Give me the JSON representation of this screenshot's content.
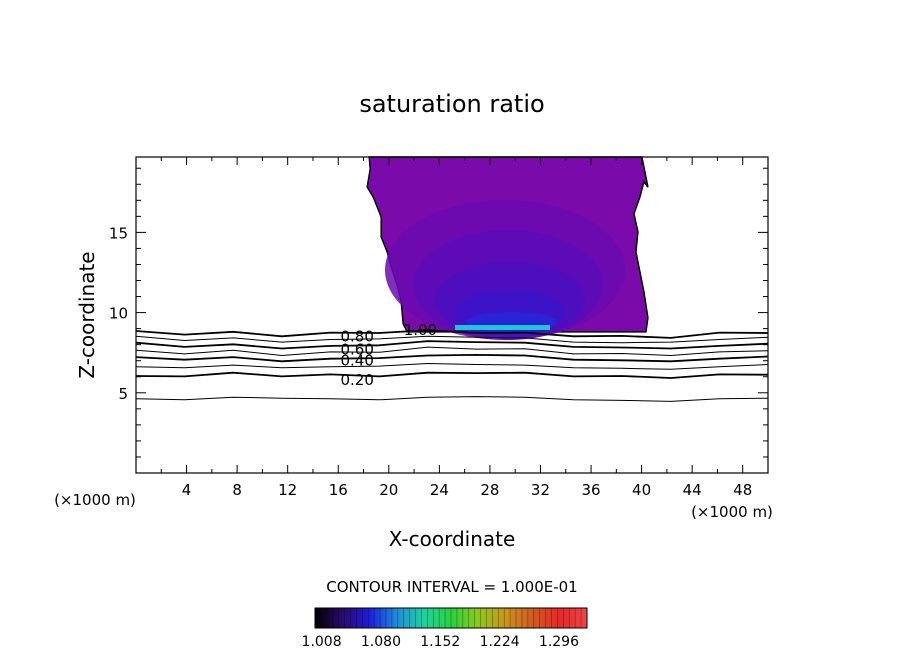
{
  "chart_data": {
    "type": "heatmap",
    "title": "saturation ratio",
    "xlabel": "X-coordinate",
    "ylabel": "Z-coordinate",
    "x_unit_label": "(×1000 m)",
    "z_unit_label": "(×1000 m)",
    "xlim": [
      0,
      50
    ],
    "ylim": [
      0,
      19.7
    ],
    "x_ticks": [
      "4",
      "8",
      "12",
      "16",
      "20",
      "24",
      "28",
      "32",
      "36",
      "40",
      "44",
      "48"
    ],
    "y_ticks": [
      "5",
      "10",
      "15"
    ],
    "contour_interval_label": "CONTOUR INTERVAL = 1.000E-01",
    "contour_labels": [
      {
        "text": "0.80",
        "x": 17.5,
        "y": 8.5
      },
      {
        "text": "0.60",
        "x": 17.5,
        "y": 7.7
      },
      {
        "text": "0.40",
        "x": 17.5,
        "y": 7.0
      },
      {
        "text": "0.20",
        "x": 17.5,
        "y": 5.8
      },
      {
        "text": "1.00",
        "x": 22.5,
        "y": 8.9
      }
    ],
    "contour_lines": [
      {
        "level": 0.8,
        "values": [
          8.8,
          8.7,
          8.75,
          8.6,
          8.7,
          8.8,
          8.85,
          8.8,
          8.7,
          8.6,
          8.5,
          8.5,
          8.7,
          8.8
        ]
      },
      {
        "level": 0.7,
        "values": [
          8.5,
          8.3,
          8.4,
          8.2,
          8.3,
          8.4,
          8.5,
          8.5,
          8.4,
          8.2,
          8.1,
          8.2,
          8.3,
          8.5
        ]
      },
      {
        "level": 0.6,
        "values": [
          8.1,
          7.9,
          8.0,
          7.8,
          7.9,
          8.0,
          8.2,
          8.2,
          8.1,
          7.9,
          7.8,
          7.8,
          7.9,
          8.1
        ]
      },
      {
        "level": 0.5,
        "values": [
          7.6,
          7.5,
          7.6,
          7.4,
          7.5,
          7.6,
          7.8,
          7.8,
          7.7,
          7.5,
          7.4,
          7.4,
          7.5,
          7.7
        ]
      },
      {
        "level": 0.4,
        "values": [
          7.2,
          7.1,
          7.2,
          7.0,
          7.1,
          7.2,
          7.3,
          7.4,
          7.3,
          7.1,
          7.0,
          7.0,
          7.1,
          7.3
        ]
      },
      {
        "level": 0.3,
        "values": [
          6.6,
          6.6,
          6.7,
          6.6,
          6.6,
          6.7,
          6.8,
          6.8,
          6.7,
          6.6,
          6.5,
          6.5,
          6.6,
          6.8
        ]
      },
      {
        "level": 0.2,
        "values": [
          6.0,
          6.1,
          6.2,
          6.1,
          6.1,
          6.1,
          6.2,
          6.3,
          6.2,
          6.1,
          6.0,
          6.0,
          6.1,
          6.2
        ]
      },
      {
        "level": 0.1,
        "values": [
          4.6,
          4.6,
          4.7,
          4.7,
          4.6,
          4.6,
          4.7,
          4.8,
          4.7,
          4.6,
          4.5,
          4.5,
          4.6,
          4.7
        ]
      }
    ],
    "supersaturated_region": {
      "x_range": [
        17.5,
        40.5
      ],
      "z_range": [
        8.8,
        19.7
      ]
    },
    "colorbar": {
      "ticks": [
        "1.008",
        "1.080",
        "1.152",
        "1.224",
        "1.296"
      ],
      "range": [
        1.0,
        1.33
      ],
      "colors": [
        "#000000",
        "#2a0a6a",
        "#1e1ed8",
        "#1e8cdc",
        "#1ed2a0",
        "#2ad23c",
        "#8cc81e",
        "#c8961e",
        "#d25a1e",
        "#e62828",
        "#f04646"
      ]
    }
  }
}
